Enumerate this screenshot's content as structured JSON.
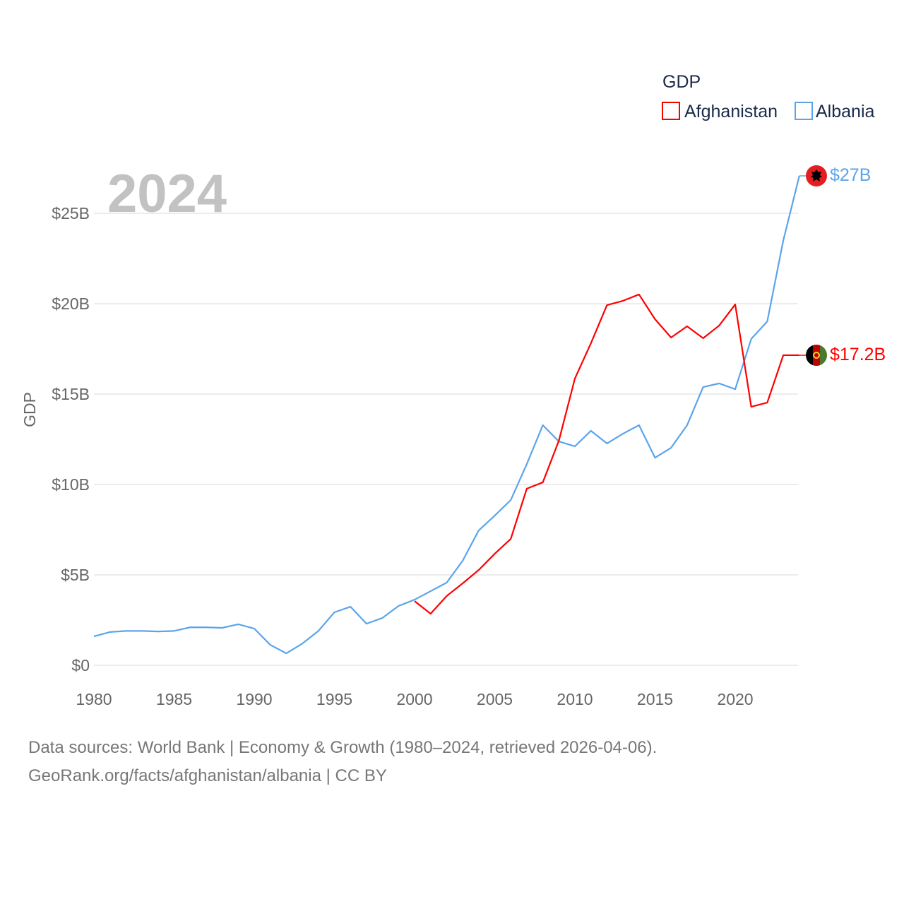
{
  "chart_data": {
    "type": "line",
    "title": "GDP",
    "year_label": "2024",
    "xlabel": "",
    "ylabel": "GDP",
    "xlim": [
      1980,
      2024
    ],
    "ylim": [
      0,
      27.5
    ],
    "grid": true,
    "legend_position": "top-right",
    "x_ticks": [
      1980,
      1985,
      1990,
      1995,
      2000,
      2005,
      2010,
      2015,
      2020
    ],
    "y_ticks": [
      {
        "value": 0,
        "label": "$0"
      },
      {
        "value": 5,
        "label": "$5B"
      },
      {
        "value": 10,
        "label": "$10B"
      },
      {
        "value": 15,
        "label": "$15B"
      },
      {
        "value": 20,
        "label": "$20B"
      },
      {
        "value": 25,
        "label": "$25B"
      }
    ],
    "series": [
      {
        "name": "Afghanistan",
        "color": "#ff0000",
        "end_label": "$17.2B",
        "flag": "afghanistan-flag",
        "x": [
          2000,
          2001,
          2002,
          2003,
          2004,
          2005,
          2006,
          2007,
          2008,
          2009,
          2010,
          2011,
          2012,
          2013,
          2014,
          2015,
          2016,
          2017,
          2018,
          2019,
          2020,
          2021,
          2022,
          2023,
          2024
        ],
        "values": [
          3.55,
          2.85,
          3.83,
          4.53,
          5.27,
          6.17,
          6.99,
          9.77,
          10.12,
          12.42,
          15.86,
          17.81,
          19.92,
          20.16,
          20.51,
          19.14,
          18.13,
          18.75,
          18.09,
          18.79,
          19.96,
          14.3,
          14.53,
          17.15,
          17.15
        ]
      },
      {
        "name": "Albania",
        "color": "#5ba4ec",
        "end_label": "$27B",
        "flag": "albania-flag",
        "x": [
          1980,
          1981,
          1982,
          1983,
          1984,
          1985,
          1986,
          1987,
          1988,
          1989,
          1990,
          1991,
          1992,
          1993,
          1994,
          1995,
          1996,
          1997,
          1998,
          1999,
          2000,
          2001,
          2002,
          2003,
          2004,
          2005,
          2006,
          2007,
          2008,
          2009,
          2010,
          2011,
          2012,
          2013,
          2014,
          2015,
          2016,
          2017,
          2018,
          2019,
          2020,
          2021,
          2022,
          2023,
          2024
        ],
        "values": [
          1.6,
          1.84,
          1.9,
          1.9,
          1.87,
          1.9,
          2.1,
          2.1,
          2.07,
          2.27,
          2.03,
          1.13,
          0.66,
          1.2,
          1.9,
          2.93,
          3.24,
          2.3,
          2.62,
          3.28,
          3.63,
          4.1,
          4.57,
          5.78,
          7.46,
          8.28,
          9.14,
          11.13,
          13.28,
          12.38,
          12.11,
          12.97,
          12.27,
          12.81,
          13.28,
          11.48,
          12.03,
          13.28,
          15.39,
          15.59,
          15.27,
          18.05,
          19.02,
          23.5,
          27.07
        ]
      }
    ]
  },
  "footer": {
    "line1": "Data sources: World Bank | Economy & Growth (1980–2024, retrieved 2026-04-06).",
    "line2": "GeoRank.org/facts/afghanistan/albania | CC BY"
  }
}
